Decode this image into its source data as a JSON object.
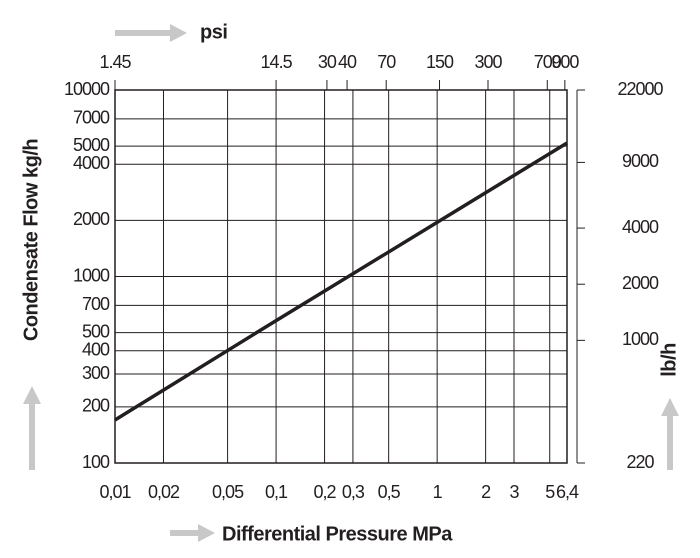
{
  "chart_data": {
    "type": "line",
    "x2label": "psi",
    "xlabel": "Differential Pressure MPa",
    "ylabel": "Condensate Flow kg/h",
    "y2label": "lb/h",
    "log_x": true,
    "log_y": true,
    "grid": true,
    "x": [
      0.01,
      0.1,
      1,
      6.4
    ],
    "values": [
      170,
      580,
      1950,
      5200
    ],
    "color": "#231f20",
    "xlim": [
      0.01,
      6.4
    ],
    "xticks": [
      {
        "value": 0.01,
        "label": "0,01"
      },
      {
        "value": 0.02,
        "label": "0,02"
      },
      {
        "value": 0.05,
        "label": "0,05"
      },
      {
        "value": 0.1,
        "label": "0,1"
      },
      {
        "value": 0.2,
        "label": "0,2"
      },
      {
        "value": 0.3,
        "label": "0,3"
      },
      {
        "value": 0.5,
        "label": "0,5"
      },
      1,
      2,
      3,
      5,
      {
        "value": 6.4,
        "label": "6,4"
      }
    ],
    "x2lim": [
      1.45,
      928
    ],
    "x2ticks": [
      1.45,
      14.5,
      30,
      40,
      70,
      150,
      300,
      700,
      900
    ],
    "ylim": [
      100,
      10000
    ],
    "yticks": [
      100,
      200,
      300,
      400,
      500,
      700,
      1000,
      2000,
      4000,
      5000,
      7000,
      10000
    ],
    "y2lim": [
      220,
      22000
    ],
    "y2ticks": [
      220,
      1000,
      2000,
      4000,
      9000,
      22000
    ]
  }
}
